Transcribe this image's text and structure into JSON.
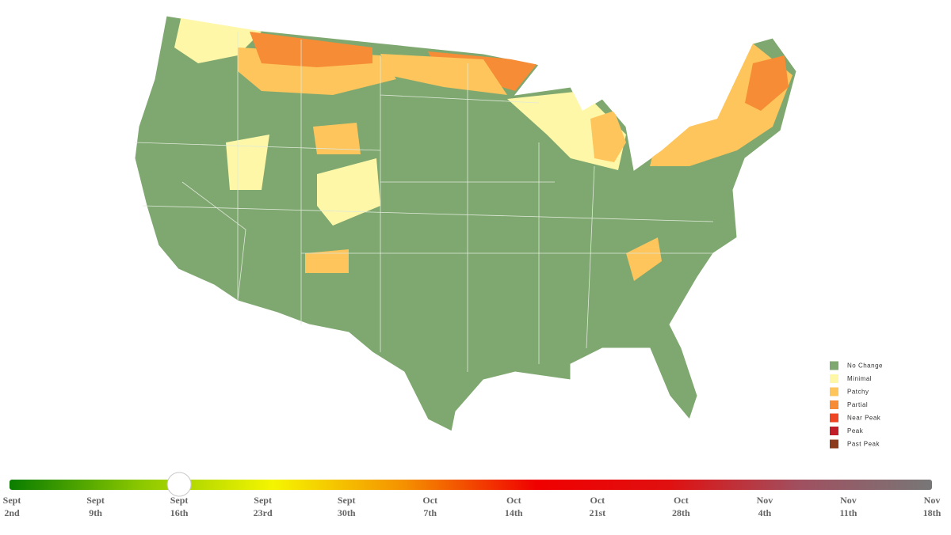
{
  "legend": [
    {
      "label": "No Change",
      "color": "#7fa870"
    },
    {
      "label": "Minimal",
      "color": "#fff7a8"
    },
    {
      "label": "Patchy",
      "color": "#fdc55c"
    },
    {
      "label": "Partial",
      "color": "#f68c35"
    },
    {
      "label": "Near Peak",
      "color": "#ee4524"
    },
    {
      "label": "Peak",
      "color": "#c21e2a"
    },
    {
      "label": "Past Peak",
      "color": "#8b3a1c"
    }
  ],
  "timeline": {
    "stops": [
      {
        "month": "Sept",
        "day": "2nd"
      },
      {
        "month": "Sept",
        "day": "9th"
      },
      {
        "month": "Sept",
        "day": "16th"
      },
      {
        "month": "Sept",
        "day": "23rd"
      },
      {
        "month": "Sept",
        "day": "30th"
      },
      {
        "month": "Oct",
        "day": "7th"
      },
      {
        "month": "Oct",
        "day": "14th"
      },
      {
        "month": "Oct",
        "day": "21st"
      },
      {
        "month": "Oct",
        "day": "28th"
      },
      {
        "month": "Nov",
        "day": "4th"
      },
      {
        "month": "Nov",
        "day": "11th"
      },
      {
        "month": "Nov",
        "day": "18th"
      }
    ],
    "selected_index": 2,
    "gradient": [
      "#0a7d00",
      "#8cc800",
      "#f5f500",
      "#f59000",
      "#f00000",
      "#e01010",
      "#a05060",
      "#777777"
    ]
  }
}
